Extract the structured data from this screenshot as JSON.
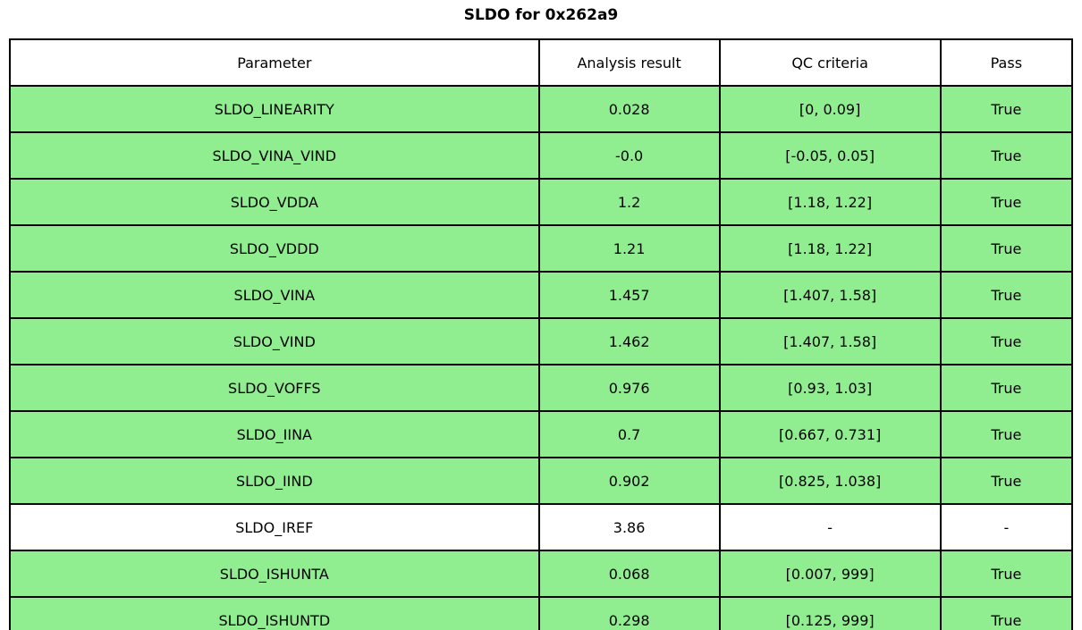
{
  "chart_data": {
    "type": "table",
    "title": "SLDO for 0x262a9",
    "columns": [
      "Parameter",
      "Analysis result",
      "QC criteria",
      "Pass"
    ],
    "rows": [
      {
        "parameter": "SLDO_LINEARITY",
        "result": "0.028",
        "criteria": "[0, 0.09]",
        "pass": "True",
        "highlight": true
      },
      {
        "parameter": "SLDO_VINA_VIND",
        "result": "-0.0",
        "criteria": "[-0.05, 0.05]",
        "pass": "True",
        "highlight": true
      },
      {
        "parameter": "SLDO_VDDA",
        "result": "1.2",
        "criteria": "[1.18, 1.22]",
        "pass": "True",
        "highlight": true
      },
      {
        "parameter": "SLDO_VDDD",
        "result": "1.21",
        "criteria": "[1.18, 1.22]",
        "pass": "True",
        "highlight": true
      },
      {
        "parameter": "SLDO_VINA",
        "result": "1.457",
        "criteria": "[1.407, 1.58]",
        "pass": "True",
        "highlight": true
      },
      {
        "parameter": "SLDO_VIND",
        "result": "1.462",
        "criteria": "[1.407, 1.58]",
        "pass": "True",
        "highlight": true
      },
      {
        "parameter": "SLDO_VOFFS",
        "result": "0.976",
        "criteria": "[0.93, 1.03]",
        "pass": "True",
        "highlight": true
      },
      {
        "parameter": "SLDO_IINA",
        "result": "0.7",
        "criteria": "[0.667, 0.731]",
        "pass": "True",
        "highlight": true
      },
      {
        "parameter": "SLDO_IIND",
        "result": "0.902",
        "criteria": "[0.825, 1.038]",
        "pass": "True",
        "highlight": true
      },
      {
        "parameter": "SLDO_IREF",
        "result": "3.86",
        "criteria": "-",
        "pass": "-",
        "highlight": false
      },
      {
        "parameter": "SLDO_ISHUNTA",
        "result": "0.068",
        "criteria": "[0.007, 999]",
        "pass": "True",
        "highlight": true
      },
      {
        "parameter": "SLDO_ISHUNTD",
        "result": "0.298",
        "criteria": "[0.125, 999]",
        "pass": "True",
        "highlight": true
      }
    ],
    "colors": {
      "pass_row_bg": "#90EE90",
      "neutral_row_bg": "#FFFFFF",
      "border": "#000000",
      "text": "#000000"
    },
    "layout": {
      "legend": "none",
      "grid": "table-borders"
    }
  }
}
